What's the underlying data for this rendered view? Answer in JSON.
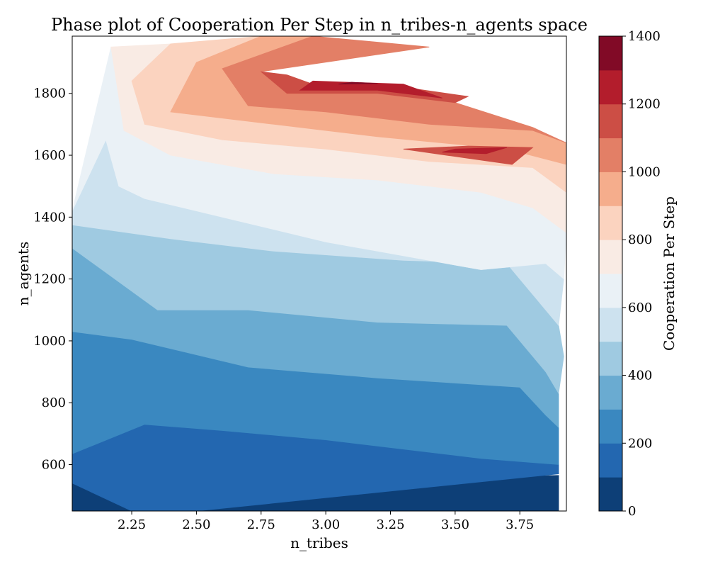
{
  "chart_data": {
    "type": "heatmap",
    "title": "Phase plot of Cooperation Per Step in n_tribes-n_agents space",
    "xlabel": "n_tribes",
    "ylabel": "n_agents",
    "xlim": [
      2.02,
      3.93
    ],
    "ylim": [
      450,
      1985
    ],
    "xticks": [
      2.25,
      2.5,
      2.75,
      3.0,
      3.25,
      3.5,
      3.75
    ],
    "xtick_labels": [
      "2.25",
      "2.50",
      "2.75",
      "3.00",
      "3.25",
      "3.50",
      "3.75"
    ],
    "yticks": [
      600,
      800,
      1000,
      1200,
      1400,
      1600,
      1800
    ],
    "ytick_labels": [
      "600",
      "800",
      "1000",
      "1200",
      "1400",
      "1600",
      "1800"
    ],
    "colorbar": {
      "label": "Cooperation Per Step",
      "levels": [
        0,
        100,
        200,
        300,
        400,
        500,
        600,
        700,
        800,
        900,
        1000,
        1100,
        1200,
        1300,
        1400
      ],
      "ticks": [
        0,
        200,
        400,
        600,
        800,
        1000,
        1200,
        1400
      ],
      "tick_labels": [
        "0",
        "200",
        "400",
        "600",
        "800",
        "1000",
        "1200",
        "1400"
      ],
      "colors": [
        "#0d3f77",
        "#2367b0",
        "#3a88c0",
        "#6aabd1",
        "#9fcae1",
        "#cde2ef",
        "#eaf1f6",
        "#f9ebe4",
        "#fbd3bf",
        "#f5ad8c",
        "#e37f66",
        "#cc4e45",
        "#b31d2c",
        "#810a26"
      ]
    },
    "contour_bands": [
      {
        "level_index": 0,
        "points": [
          [
            2.02,
            450
          ],
          [
            3.9,
            450
          ],
          [
            3.9,
            565
          ],
          [
            2.02,
            540
          ]
        ]
      },
      {
        "level_index": 1,
        "points": [
          [
            2.02,
            540
          ],
          [
            2.25,
            450
          ],
          [
            2.5,
            450
          ],
          [
            3.9,
            570
          ],
          [
            3.9,
            600
          ],
          [
            3.6,
            620
          ],
          [
            3.0,
            680
          ],
          [
            2.6,
            710
          ],
          [
            2.3,
            730
          ],
          [
            2.02,
            635
          ]
        ]
      },
      {
        "level_index": 2,
        "points": [
          [
            2.02,
            635
          ],
          [
            2.3,
            730
          ],
          [
            2.6,
            710
          ],
          [
            3.0,
            680
          ],
          [
            3.6,
            620
          ],
          [
            3.9,
            600
          ],
          [
            3.9,
            720
          ],
          [
            3.85,
            760
          ],
          [
            3.75,
            850
          ],
          [
            3.2,
            880
          ],
          [
            2.7,
            915
          ],
          [
            2.25,
            1005
          ],
          [
            2.02,
            1030
          ]
        ]
      },
      {
        "level_index": 3,
        "points": [
          [
            2.02,
            1030
          ],
          [
            2.25,
            1005
          ],
          [
            2.7,
            915
          ],
          [
            3.2,
            880
          ],
          [
            3.75,
            850
          ],
          [
            3.85,
            760
          ],
          [
            3.9,
            720
          ],
          [
            3.9,
            830
          ],
          [
            3.85,
            900
          ],
          [
            3.7,
            1050
          ],
          [
            3.2,
            1060
          ],
          [
            2.7,
            1100
          ],
          [
            2.35,
            1100
          ],
          [
            2.02,
            1300
          ]
        ]
      },
      {
        "level_index": 4,
        "points": [
          [
            2.02,
            1300
          ],
          [
            2.35,
            1100
          ],
          [
            2.7,
            1100
          ],
          [
            3.2,
            1060
          ],
          [
            3.7,
            1050
          ],
          [
            3.85,
            900
          ],
          [
            3.9,
            830
          ],
          [
            3.92,
            950
          ],
          [
            3.9,
            1050
          ],
          [
            3.8,
            1150
          ],
          [
            3.7,
            1250
          ],
          [
            3.3,
            1260
          ],
          [
            2.8,
            1290
          ],
          [
            2.4,
            1330
          ],
          [
            2.02,
            1375
          ]
        ]
      },
      {
        "level_index": 5,
        "points": [
          [
            2.02,
            1375
          ],
          [
            2.4,
            1330
          ],
          [
            2.8,
            1290
          ],
          [
            3.3,
            1260
          ],
          [
            3.7,
            1250
          ],
          [
            3.8,
            1150
          ],
          [
            3.9,
            1050
          ],
          [
            3.92,
            1200
          ],
          [
            3.85,
            1250
          ],
          [
            3.6,
            1230
          ],
          [
            3.0,
            1320
          ],
          [
            2.6,
            1400
          ],
          [
            2.3,
            1460
          ],
          [
            2.2,
            1500
          ],
          [
            2.15,
            1650
          ],
          [
            2.02,
            1420
          ]
        ]
      },
      {
        "level_index": 6,
        "points": [
          [
            2.02,
            1420
          ],
          [
            2.15,
            1650
          ],
          [
            2.2,
            1500
          ],
          [
            2.3,
            1460
          ],
          [
            2.6,
            1400
          ],
          [
            3.0,
            1320
          ],
          [
            3.6,
            1230
          ],
          [
            3.85,
            1250
          ],
          [
            3.92,
            1200
          ],
          [
            3.93,
            1350
          ],
          [
            3.8,
            1430
          ],
          [
            3.6,
            1480
          ],
          [
            3.2,
            1520
          ],
          [
            2.8,
            1540
          ],
          [
            2.4,
            1600
          ],
          [
            2.22,
            1680
          ],
          [
            2.17,
            1950
          ]
        ]
      },
      {
        "level_index": 7,
        "points": [
          [
            2.17,
            1950
          ],
          [
            2.22,
            1680
          ],
          [
            2.4,
            1600
          ],
          [
            2.8,
            1540
          ],
          [
            3.2,
            1520
          ],
          [
            3.6,
            1480
          ],
          [
            3.8,
            1430
          ],
          [
            3.93,
            1350
          ],
          [
            3.93,
            1480
          ],
          [
            3.8,
            1560
          ],
          [
            3.4,
            1580
          ],
          [
            3.0,
            1620
          ],
          [
            2.6,
            1650
          ],
          [
            2.3,
            1700
          ],
          [
            2.25,
            1840
          ],
          [
            2.4,
            1960
          ]
        ]
      },
      {
        "level_index": 8,
        "points": [
          [
            2.4,
            1960
          ],
          [
            2.25,
            1840
          ],
          [
            2.3,
            1700
          ],
          [
            2.6,
            1650
          ],
          [
            3.0,
            1620
          ],
          [
            3.4,
            1580
          ],
          [
            3.8,
            1560
          ],
          [
            3.93,
            1480
          ],
          [
            3.93,
            1570
          ],
          [
            3.7,
            1620
          ],
          [
            3.2,
            1660
          ],
          [
            2.8,
            1700
          ],
          [
            2.4,
            1740
          ],
          [
            2.5,
            1900
          ],
          [
            2.75,
            1985
          ]
        ]
      },
      {
        "level_index": 9,
        "points": [
          [
            2.75,
            1985
          ],
          [
            2.5,
            1900
          ],
          [
            2.4,
            1740
          ],
          [
            2.8,
            1700
          ],
          [
            3.2,
            1660
          ],
          [
            3.7,
            1620
          ],
          [
            3.93,
            1570
          ],
          [
            3.93,
            1640
          ],
          [
            3.8,
            1680
          ],
          [
            3.4,
            1700
          ],
          [
            3.0,
            1740
          ],
          [
            2.7,
            1760
          ],
          [
            2.6,
            1880
          ],
          [
            2.95,
            1985
          ]
        ]
      },
      {
        "level_index": 10,
        "points": [
          [
            2.95,
            1985
          ],
          [
            2.6,
            1880
          ],
          [
            2.7,
            1760
          ],
          [
            3.0,
            1740
          ],
          [
            3.4,
            1700
          ],
          [
            3.8,
            1680
          ],
          [
            3.93,
            1640
          ],
          [
            3.8,
            1690
          ],
          [
            3.5,
            1770
          ],
          [
            3.2,
            1800
          ],
          [
            2.85,
            1800
          ],
          [
            2.75,
            1870
          ],
          [
            3.4,
            1950
          ]
        ]
      },
      {
        "level_index": 11,
        "points": [
          [
            2.75,
            1870
          ],
          [
            2.85,
            1800
          ],
          [
            3.2,
            1800
          ],
          [
            3.5,
            1770
          ],
          [
            3.55,
            1790
          ],
          [
            3.3,
            1820
          ],
          [
            2.95,
            1830
          ],
          [
            2.85,
            1860
          ]
        ]
      },
      {
        "level_index": 11,
        "points": [
          [
            3.3,
            1620
          ],
          [
            3.55,
            1590
          ],
          [
            3.72,
            1570
          ],
          [
            3.8,
            1625
          ],
          [
            3.55,
            1630
          ]
        ]
      },
      {
        "level_index": 12,
        "points": [
          [
            2.9,
            1810
          ],
          [
            3.2,
            1810
          ],
          [
            3.45,
            1785
          ],
          [
            3.3,
            1830
          ],
          [
            2.95,
            1840
          ]
        ]
      },
      {
        "level_index": 12,
        "points": [
          [
            3.45,
            1610
          ],
          [
            3.62,
            1605
          ],
          [
            3.7,
            1625
          ],
          [
            3.5,
            1620
          ]
        ]
      },
      {
        "level_index": 13,
        "points": [
          [
            3.05,
            1830
          ],
          [
            3.2,
            1832
          ],
          [
            3.1,
            1836
          ]
        ]
      }
    ]
  }
}
